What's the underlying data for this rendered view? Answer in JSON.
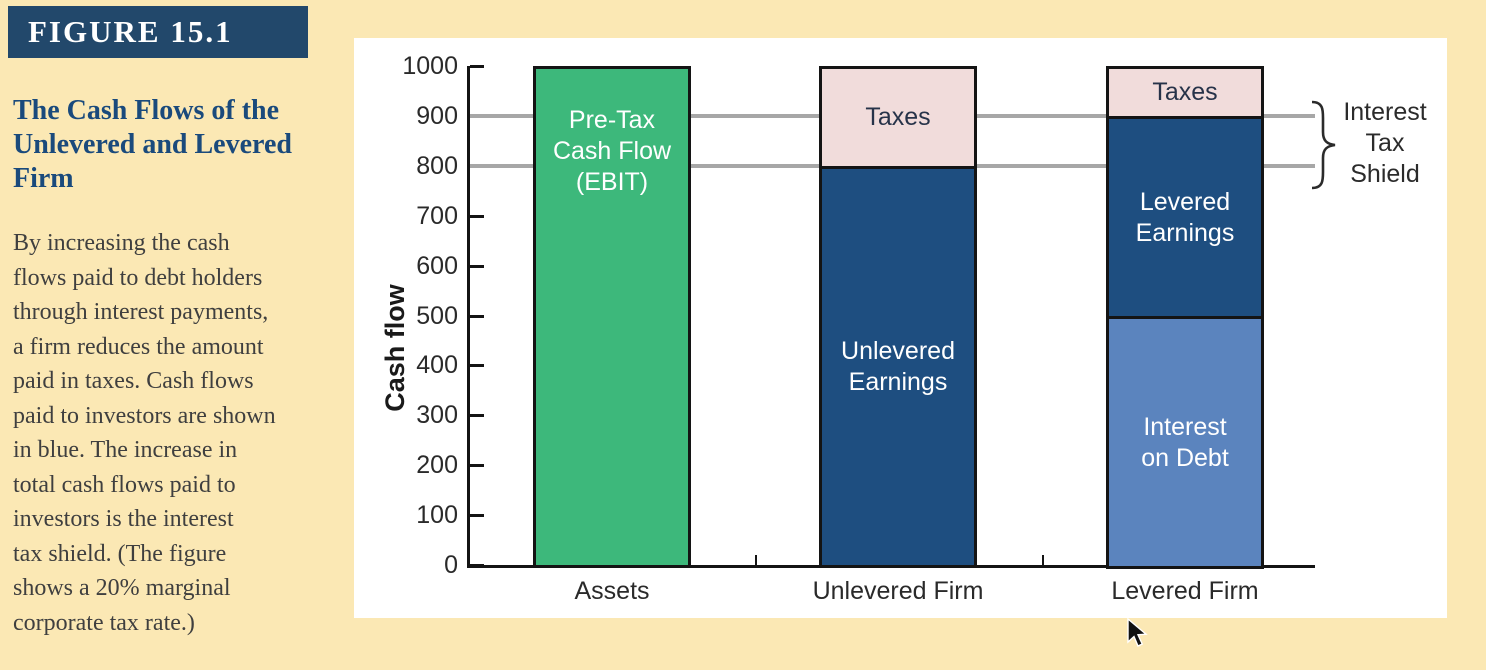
{
  "colors": {
    "page_bg": "#FBE8B4",
    "panel_bg": "#FFFFFF",
    "banner_bg": "#22486B",
    "banner_text": "#FFFFFF",
    "title_text": "#1A4A7C",
    "body_text": "#3F3F3F",
    "axis": "#141414",
    "bar_border": "#141414",
    "gridline": "#A7A7A7",
    "tick_text": "#2A2A2A",
    "green": "#3DB87B",
    "dark_blue": "#1E4E80",
    "light_blue": "#5B84BE",
    "pink": "#F1DCDB",
    "annotation_text": "#2B2B2B"
  },
  "sidebar": {
    "figure_label": "FIGURE 15.1",
    "title_lines": [
      "The Cash Flows of the",
      "Unlevered and Levered",
      "Firm"
    ],
    "description_lines": [
      "By increasing the cash",
      "flows paid to debt holders",
      "through interest payments,",
      "a firm reduces the amount",
      "paid in taxes. Cash flows",
      "paid to investors are shown",
      "in blue. The increase in",
      "total cash flows paid to",
      "investors is the interest",
      "tax shield. (The figure",
      "shows a 20% marginal",
      "corporate tax rate.)"
    ]
  },
  "chart_data": {
    "type": "bar",
    "stacked": true,
    "title": "",
    "xlabel": "",
    "ylabel": "Cash flow",
    "ylim": [
      0,
      1000
    ],
    "ytick_step": 100,
    "gridlines_y": [
      900,
      800
    ],
    "legend": "none",
    "categories": [
      "Assets",
      "Unlevered Firm",
      "Levered Firm"
    ],
    "bars": [
      {
        "category": "Assets",
        "total": 1000,
        "segments": [
          {
            "label": "Pre-Tax Cash Flow (EBIT)",
            "label_lines": [
              "Pre-Tax",
              "Cash Flow",
              "(EBIT)"
            ],
            "value": 1000,
            "color": "#3DB87B",
            "text_color": "#FFFFFF",
            "label_valign": "upper"
          }
        ]
      },
      {
        "category": "Unlevered Firm",
        "total": 1000,
        "segments": [
          {
            "label": "Taxes",
            "label_lines": [
              "Taxes"
            ],
            "value": 200,
            "color": "#F1DCDB",
            "text_color": "#273349"
          },
          {
            "label": "Unlevered Earnings",
            "label_lines": [
              "Unlevered",
              "Earnings"
            ],
            "value": 800,
            "color": "#1E4E80",
            "text_color": "#FFFFFF"
          }
        ]
      },
      {
        "category": "Levered Firm",
        "total": 1000,
        "segments": [
          {
            "label": "Taxes",
            "label_lines": [
              "Taxes"
            ],
            "value": 100,
            "color": "#F1DCDB",
            "text_color": "#273349"
          },
          {
            "label": "Levered Earnings",
            "label_lines": [
              "Levered",
              "Earnings"
            ],
            "value": 400,
            "color": "#1E4E80",
            "text_color": "#FFFFFF"
          },
          {
            "label": "Interest on Debt",
            "label_lines": [
              "Interest",
              "on Debt"
            ],
            "value": 500,
            "color": "#5B84BE",
            "text_color": "#FFFFFF"
          }
        ]
      }
    ],
    "annotation": {
      "label": "Interest Tax Shield",
      "label_lines": [
        "Interest",
        "Tax",
        "Shield"
      ],
      "from_value": 900,
      "to_value": 800
    }
  }
}
